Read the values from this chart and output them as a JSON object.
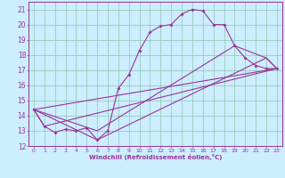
{
  "xlabel": "Windchill (Refroidissement éolien,°C)",
  "bg_color": "#cceeff",
  "line_color": "#993399",
  "grid_color": "#99ccbb",
  "xlim": [
    -0.5,
    23.5
  ],
  "ylim": [
    12,
    21.5
  ],
  "xticks": [
    0,
    1,
    2,
    3,
    4,
    5,
    6,
    7,
    8,
    9,
    10,
    11,
    12,
    13,
    14,
    15,
    16,
    17,
    18,
    19,
    20,
    21,
    22,
    23
  ],
  "yticks": [
    12,
    13,
    14,
    15,
    16,
    17,
    18,
    19,
    20,
    21
  ],
  "line1_x": [
    0,
    1,
    2,
    3,
    4,
    5,
    6,
    7,
    8,
    9,
    10,
    11,
    12,
    13,
    14,
    15,
    16,
    17,
    18,
    19,
    20,
    21,
    22,
    23
  ],
  "line1_y": [
    14.4,
    13.3,
    12.9,
    13.1,
    13.0,
    13.2,
    12.4,
    13.0,
    15.8,
    16.7,
    18.3,
    19.5,
    19.9,
    20.0,
    20.7,
    21.0,
    20.9,
    20.0,
    20.0,
    18.6,
    17.8,
    17.3,
    17.1,
    17.1
  ],
  "line2_x": [
    0,
    23
  ],
  "line2_y": [
    14.4,
    17.1
  ],
  "line3_x": [
    0,
    6,
    19,
    22,
    23
  ],
  "line3_y": [
    14.4,
    13.0,
    18.6,
    17.8,
    17.1
  ],
  "line4_x": [
    0,
    6,
    22,
    23
  ],
  "line4_y": [
    14.4,
    12.4,
    17.8,
    17.1
  ],
  "line5_x": [
    0,
    1,
    23
  ],
  "line5_y": [
    14.4,
    13.3,
    17.1
  ]
}
